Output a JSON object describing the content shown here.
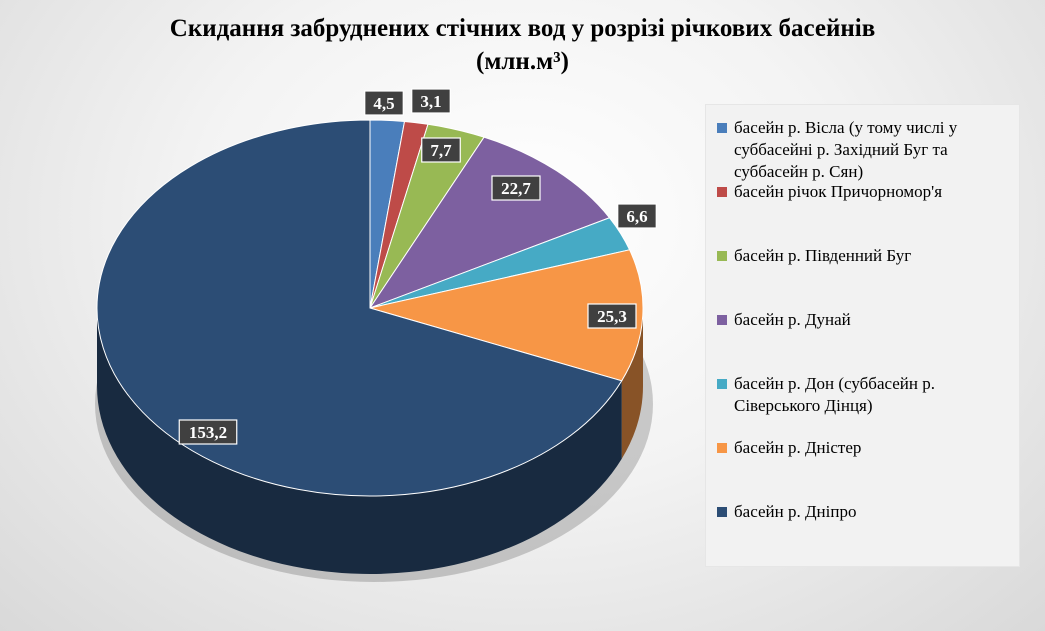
{
  "chart_data": {
    "type": "pie",
    "title": "Скидання забруднених стічних вод у розрізі річкових басейнів",
    "subtitle": "(млн.м³)",
    "legend_position": "right",
    "slices": [
      {
        "name": "басейн р. Вісла (у тому числі у суббасейні р. Західний Буг та суббасейн р. Сян)",
        "value": 4.5,
        "label": "4,5",
        "color": "#4a7ebb"
      },
      {
        "name": "басейн річок Причорномор'я",
        "value": 3.1,
        "label": "3,1",
        "color": "#be4b48"
      },
      {
        "name": "басейн р. Південний Буг",
        "value": 7.7,
        "label": "7,7",
        "color": "#98b954"
      },
      {
        "name": "басейн р. Дунай",
        "value": 22.7,
        "label": "22,7",
        "color": "#7d60a0"
      },
      {
        "name": "басейн р. Дон (суббасейн р. Сіверського Дінця)",
        "value": 6.6,
        "label": "6,6",
        "color": "#46aac5"
      },
      {
        "name": "басейн р. Дністер",
        "value": 25.3,
        "label": "25,3",
        "color": "#f79646"
      },
      {
        "name": "басейн р. Дніпро",
        "value": 153.2,
        "label": "153,2",
        "color": "#2c4d75"
      }
    ]
  }
}
